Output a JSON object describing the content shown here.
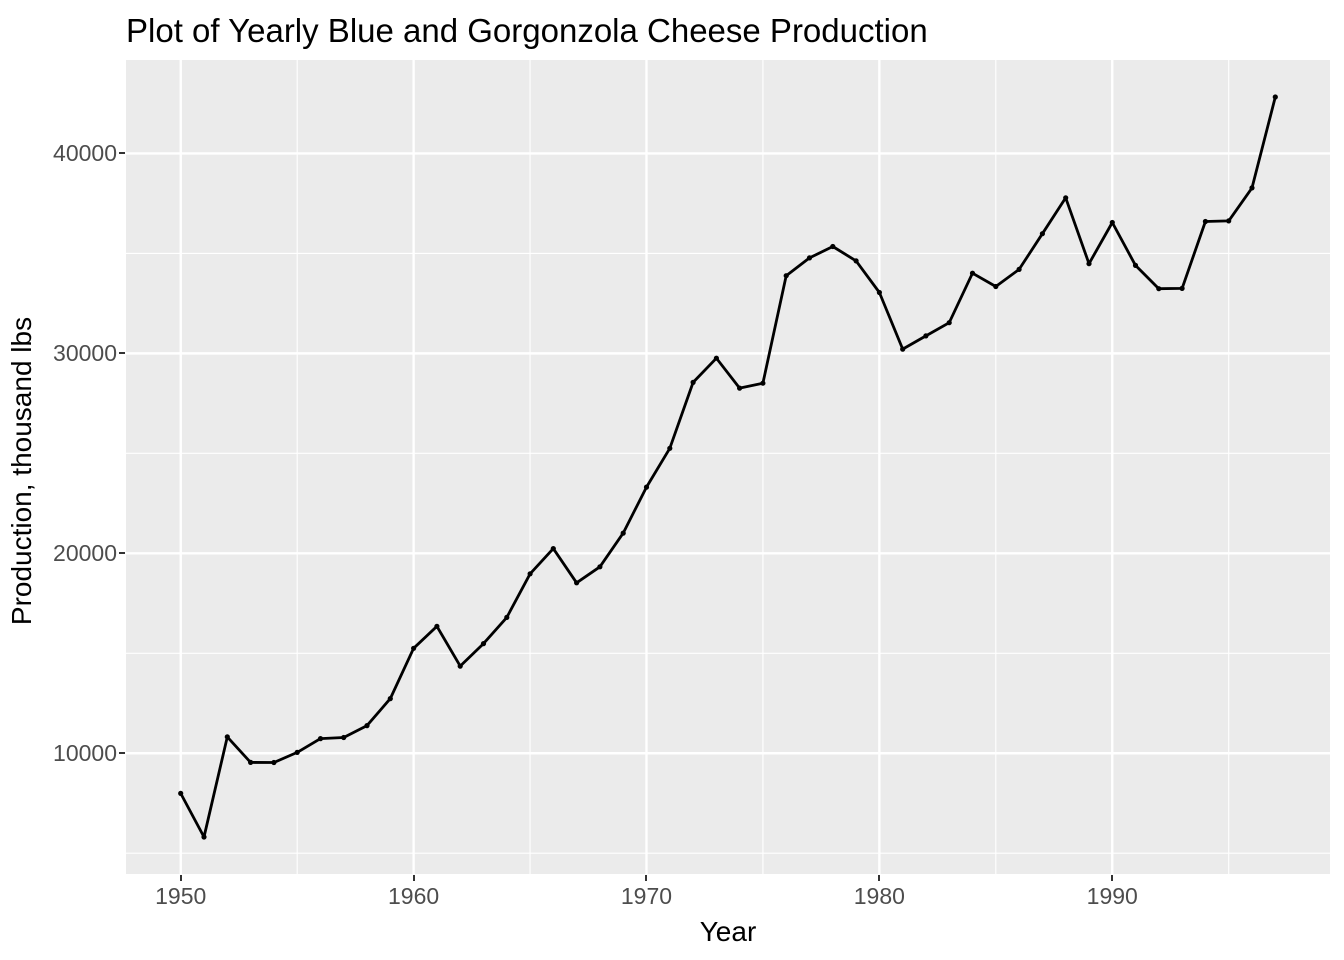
{
  "title": "Plot of Yearly Blue and Gorgonzola Cheese Production",
  "chart_data": {
    "type": "line",
    "title": "Plot of Yearly Blue and Gorgonzola Cheese Production",
    "xlabel": "Year",
    "ylabel": "Production, thousand lbs",
    "series_name": "Yearly blue and gorgonzola cheese production",
    "x": [
      1950,
      1951,
      1952,
      1953,
      1954,
      1955,
      1956,
      1957,
      1958,
      1959,
      1960,
      1961,
      1962,
      1963,
      1964,
      1965,
      1966,
      1967,
      1968,
      1969,
      1970,
      1971,
      1972,
      1973,
      1974,
      1975,
      1976,
      1977,
      1978,
      1979,
      1980,
      1981,
      1982,
      1983,
      1984,
      1985,
      1986,
      1987,
      1988,
      1989,
      1990,
      1991,
      1992,
      1993,
      1994,
      1995,
      1996,
      1997
    ],
    "values": [
      7992,
      5811,
      10816,
      9543,
      9538,
      10043,
      10733,
      10789,
      11385,
      12735,
      15247,
      16350,
      14358,
      15483,
      16793,
      18974,
      20234,
      18523,
      19325,
      21013,
      23312,
      25250,
      28550,
      29759,
      28262,
      28506,
      33885,
      34776,
      35347,
      34628,
      33043,
      30214,
      30875,
      31535,
      34009,
      33343,
      34199,
      35986,
      37782,
      34486,
      36546,
      34399,
      33237,
      33250,
      36595,
      36626,
      38278,
      42823
    ],
    "x_major_ticks": [
      1950,
      1960,
      1970,
      1980,
      1990
    ],
    "x_minor_ticks": [
      1955,
      1965,
      1975,
      1985,
      1995
    ],
    "y_major_ticks": [
      10000,
      20000,
      30000,
      40000
    ],
    "y_minor_ticks": [
      5000,
      15000,
      25000,
      35000
    ],
    "xlim": [
      1947.65,
      1999.35
    ],
    "ylim": [
      3960,
      44674
    ],
    "grid": "major+minor",
    "legend_position": "none",
    "marker": "point",
    "style": {
      "panel_bg": "#EBEBEB",
      "grid_color": "#FFFFFF",
      "grid_major_width": 2.4,
      "grid_minor_width": 1.1,
      "line_color": "#000000",
      "line_width": 2.8,
      "point_color": "#000000",
      "point_radius": 2.6,
      "axis_text_color": "#4D4D4D",
      "tick_color": "#333333",
      "title_color": "#000000"
    }
  }
}
